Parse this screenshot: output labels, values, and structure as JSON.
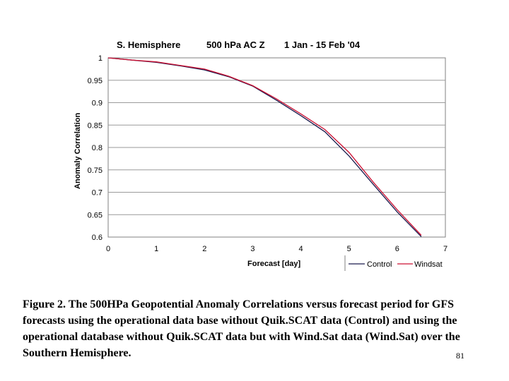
{
  "chart_data": {
    "type": "line",
    "title_parts": [
      "S. Hemisphere",
      "500 hPa AC Z",
      "1 Jan - 15 Feb '04"
    ],
    "xlabel": "Forecast [day]",
    "ylabel": "Anomaly Correlation",
    "xlim": [
      0,
      7
    ],
    "ylim": [
      0.6,
      1.0
    ],
    "x_ticks": [
      0,
      1,
      2,
      3,
      4,
      5,
      6,
      7
    ],
    "y_ticks": [
      0.6,
      0.65,
      0.7,
      0.75,
      0.8,
      0.85,
      0.9,
      0.95,
      1.0
    ],
    "x_tick_labels": [
      "0",
      "1",
      "2",
      "3",
      "4",
      "5",
      "6",
      "7"
    ],
    "y_tick_labels": [
      "0.6",
      "0.65",
      "0.7",
      "0.75",
      "0.8",
      "0.85",
      "0.9",
      "0.95",
      "1"
    ],
    "series": [
      {
        "name": "Control",
        "color": "#1a1a4d",
        "x": [
          0,
          0.5,
          1,
          1.5,
          2,
          2.5,
          3,
          3.5,
          4,
          4.5,
          5,
          5.5,
          6,
          6.5
        ],
        "y": [
          1.0,
          0.995,
          0.99,
          0.982,
          0.973,
          0.958,
          0.937,
          0.905,
          0.871,
          0.835,
          0.781,
          0.718,
          0.656,
          0.601
        ]
      },
      {
        "name": "Windsat",
        "color": "#cc1133",
        "x": [
          0,
          0.5,
          1,
          1.5,
          2,
          2.5,
          3,
          3.5,
          4,
          4.5,
          5,
          5.5,
          6,
          6.5
        ],
        "y": [
          1.0,
          0.995,
          0.991,
          0.983,
          0.975,
          0.959,
          0.938,
          0.908,
          0.875,
          0.84,
          0.789,
          0.723,
          0.661,
          0.604
        ]
      }
    ],
    "legend_labels": [
      "Control",
      "Windsat"
    ],
    "legend_position": "bottom-right"
  },
  "caption": "Figure 2. The 500HPa Geopotential Anomaly Correlations versus forecast period for GFS forecasts using the operational data base without Quik.SCAT data (Control) and using the operational database without Quik.SCAT data but with Wind.Sat data (Wind.Sat) over the Southern Hemisphere.",
  "page_number": "81"
}
